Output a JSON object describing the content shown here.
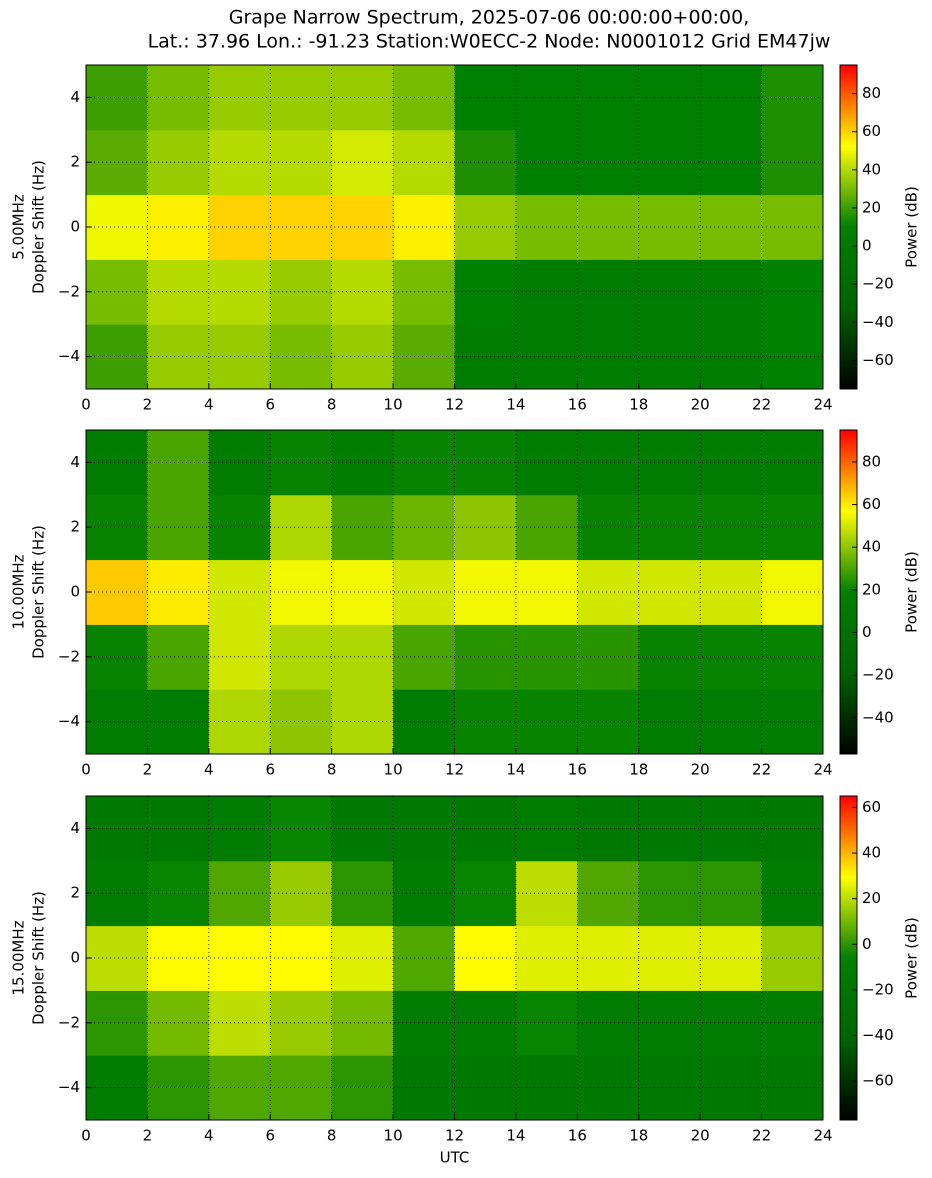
{
  "chart_data": [
    {
      "type": "heatmap",
      "title": [
        "Grape Narrow Spectrum, 2025-07-06 00:00:00+00:00,",
        "Lat.: 37.96 Lon.: -91.23 Station:W0ECC-2 Node: N0001012 Grid EM47jw"
      ],
      "ylabel": [
        "5.00MHz",
        "Doppler Shift (Hz)"
      ],
      "colorbar_label": "Power (dB)",
      "colormap": [
        "#000000",
        "#006400",
        "#008000",
        "#ffff00",
        "#ff0000"
      ],
      "xlim": [
        0,
        24
      ],
      "xticks": [
        0,
        2,
        4,
        6,
        8,
        10,
        12,
        14,
        16,
        18,
        20,
        22,
        24
      ],
      "ylim": [
        -5,
        5
      ],
      "yticks": [
        {
          "value": -4,
          "label": "−4"
        },
        {
          "value": -2,
          "label": "−2"
        },
        0,
        2,
        4
      ],
      "clim": [
        -75,
        95
      ],
      "cticks": [
        {
          "value": -60,
          "label": "−60"
        },
        {
          "value": -40,
          "label": "−40"
        },
        {
          "value": -20,
          "label": "−20"
        },
        0,
        20,
        40,
        60,
        80
      ],
      "grid": true,
      "xbins": [
        0,
        2,
        4,
        6,
        8,
        10,
        12,
        14,
        16,
        18,
        20,
        22,
        24
      ],
      "ybins": [
        -5,
        -3,
        -1,
        1,
        3,
        5
      ],
      "values": [
        [
          20,
          35,
          35,
          30,
          35,
          25,
          5,
          5,
          5,
          5,
          5,
          10
        ],
        [
          30,
          40,
          40,
          35,
          40,
          30,
          10,
          5,
          5,
          5,
          5,
          10
        ],
        [
          50,
          55,
          60,
          60,
          60,
          55,
          35,
          30,
          30,
          30,
          30,
          30
        ],
        [
          25,
          35,
          40,
          40,
          45,
          40,
          15,
          10,
          10,
          10,
          10,
          15
        ],
        [
          20,
          30,
          35,
          35,
          35,
          30,
          10,
          10,
          10,
          10,
          10,
          15
        ]
      ]
    },
    {
      "type": "heatmap",
      "ylabel": [
        "10.00MHz",
        "Doppler Shift (Hz)"
      ],
      "colorbar_label": "Power (dB)",
      "colormap": [
        "#000000",
        "#006400",
        "#008000",
        "#ffff00",
        "#ff0000"
      ],
      "xlim": [
        0,
        24
      ],
      "xticks": [
        0,
        2,
        4,
        6,
        8,
        10,
        12,
        14,
        16,
        18,
        20,
        22,
        24
      ],
      "ylim": [
        -5,
        5
      ],
      "yticks": [
        {
          "value": -4,
          "label": "−4"
        },
        {
          "value": -2,
          "label": "−2"
        },
        0,
        2,
        4
      ],
      "clim": [
        -57,
        95
      ],
      "cticks": [
        {
          "value": -40,
          "label": "−40"
        },
        {
          "value": -20,
          "label": "−20"
        },
        0,
        20,
        40,
        60,
        80
      ],
      "grid": true,
      "xbins": [
        0,
        2,
        4,
        6,
        8,
        10,
        12,
        14,
        16,
        18,
        20,
        22,
        24
      ],
      "ybins": [
        -5,
        -3,
        -1,
        1,
        3,
        5
      ],
      "values": [
        [
          15,
          15,
          45,
          40,
          45,
          15,
          20,
          20,
          20,
          15,
          15,
          15
        ],
        [
          20,
          30,
          50,
          45,
          45,
          30,
          25,
          25,
          25,
          20,
          20,
          20
        ],
        [
          65,
          60,
          50,
          55,
          55,
          50,
          55,
          55,
          50,
          50,
          50,
          55
        ],
        [
          20,
          30,
          20,
          45,
          30,
          35,
          40,
          30,
          20,
          20,
          20,
          20
        ],
        [
          15,
          30,
          15,
          20,
          15,
          20,
          20,
          15,
          15,
          15,
          15,
          15
        ]
      ]
    },
    {
      "type": "heatmap",
      "ylabel": [
        "15.00MHz",
        "Doppler Shift (Hz)"
      ],
      "xlabel": "UTC",
      "colorbar_label": "Power (dB)",
      "colormap": [
        "#000000",
        "#006400",
        "#008000",
        "#ffff00",
        "#ff0000"
      ],
      "xlim": [
        0,
        24
      ],
      "xticks": [
        0,
        2,
        4,
        6,
        8,
        10,
        12,
        14,
        16,
        18,
        20,
        22,
        24
      ],
      "ylim": [
        -5,
        5
      ],
      "yticks": [
        {
          "value": -4,
          "label": "−4"
        },
        {
          "value": -2,
          "label": "−2"
        },
        0,
        2,
        4
      ],
      "clim": [
        -77,
        65
      ],
      "cticks": [
        {
          "value": -60,
          "label": "−60"
        },
        {
          "value": -40,
          "label": "−40"
        },
        {
          "value": -20,
          "label": "−20"
        },
        0,
        20,
        40,
        60
      ],
      "grid": true,
      "xbins": [
        0,
        2,
        4,
        6,
        8,
        10,
        12,
        14,
        16,
        18,
        20,
        22,
        24
      ],
      "ybins": [
        -5,
        -3,
        -1,
        1,
        3,
        5
      ],
      "values": [
        [
          -10,
          0,
          5,
          5,
          0,
          -15,
          -15,
          -15,
          -15,
          -15,
          -15,
          -15
        ],
        [
          0,
          10,
          20,
          15,
          10,
          -10,
          -10,
          -5,
          -10,
          -10,
          -10,
          -10
        ],
        [
          20,
          30,
          30,
          30,
          25,
          5,
          30,
          25,
          25,
          25,
          25,
          15
        ],
        [
          -10,
          -5,
          5,
          15,
          0,
          -10,
          -5,
          20,
          5,
          0,
          0,
          -10
        ],
        [
          -15,
          -15,
          -10,
          -5,
          -15,
          -15,
          -15,
          -10,
          -15,
          -15,
          -15,
          -15
        ]
      ]
    }
  ]
}
